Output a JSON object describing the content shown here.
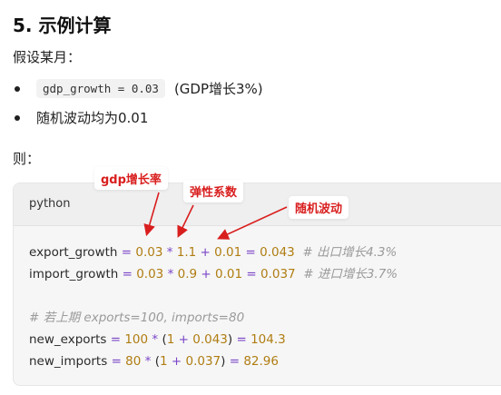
{
  "section": {
    "heading": "5. 示例计算",
    "intro": "假设某月：",
    "bullets": [
      {
        "code": "gdp_growth = 0.03",
        "text": "(GDP增长3%)"
      },
      {
        "text": "随机波动均为0.01"
      }
    ],
    "then": "则："
  },
  "code_block": {
    "language": "python",
    "lines": [
      {
        "lhs": "export_growth",
        "eq": "=",
        "a": "0.03",
        "mul": "*",
        "b": "1.1",
        "plus": "+",
        "c": "0.01",
        "eq2": "=",
        "result": "0.043",
        "comment": "# 出口增长4.3%"
      },
      {
        "lhs": "import_growth",
        "eq": "=",
        "a": "0.03",
        "mul": "*",
        "b": "0.9",
        "plus": "+",
        "c": "0.01",
        "eq2": "=",
        "result": "0.037",
        "comment": "# 进口增长3.7%"
      },
      {
        "comment": "# 若上期 exports=100, imports=80"
      },
      {
        "lhs": "new_exports",
        "eq": "=",
        "a": "100",
        "mul": "*",
        "open": "(",
        "one": "1",
        "plus": "+",
        "b": "0.043",
        "close": ")",
        "eq2": "=",
        "result": "104.3"
      },
      {
        "lhs": "new_imports",
        "eq": "=",
        "a": "80",
        "mul": "*",
        "open": "(",
        "one": "1",
        "plus": "+",
        "b": "0.037",
        "close": ")",
        "eq2": "=",
        "result": "82.96"
      }
    ]
  },
  "annotations": {
    "gdp": "gdp增长率",
    "elasticity": "弹性系数",
    "random": "随机波动"
  },
  "colors": {
    "number": "#b07d12",
    "operator": "#7a46c7",
    "comment": "#9a9a9a",
    "annotation": "#d91e1e"
  }
}
